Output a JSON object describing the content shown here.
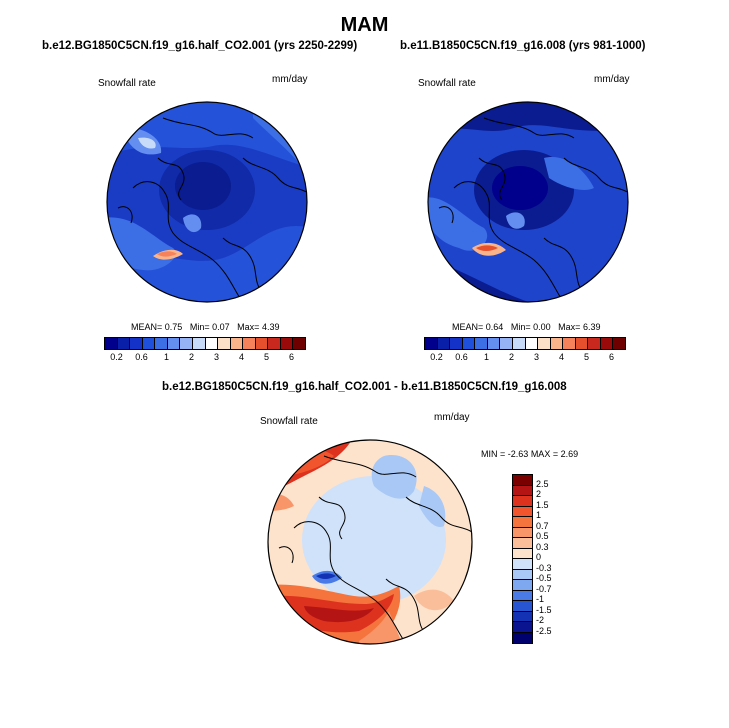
{
  "title": "MAM",
  "panel_left": {
    "title": "b.e12.BG1850C5CN.f19_g16.half_CO2.001 (yrs 2250-2299)",
    "variable": "Snowfall rate",
    "units": "mm/day",
    "stats": {
      "mean_label": "MEAN=",
      "mean": "0.75",
      "min_label": "Min=",
      "min": "0.07",
      "max_label": "Max=",
      "max": "4.39"
    }
  },
  "panel_right": {
    "title": "b.e11.B1850C5CN.f19_g16.008 (yrs 981-1000)",
    "variable": "Snowfall rate",
    "units": "mm/day",
    "stats": {
      "mean_label": "MEAN=",
      "mean": "0.64",
      "min_label": "Min=",
      "min": "0.00",
      "max_label": "Max=",
      "max": "6.39"
    }
  },
  "panel_diff": {
    "title": "b.e12.BG1850C5CN.f19_g16.half_CO2.001 - b.e11.B1850C5CN.f19_g16.008",
    "variable": "Snowfall rate",
    "units": "mm/day",
    "minmax": {
      "min_label": "MIN =",
      "min": "-2.63",
      "max_label": "MAX =",
      "max": "2.69"
    }
  },
  "colorbar_abs": {
    "labels": [
      "0.2",
      "0.6",
      "1",
      "2",
      "3",
      "4",
      "5",
      "6"
    ],
    "colors": [
      "#00008c",
      "#0a1fa8",
      "#1432c8",
      "#1e50dc",
      "#3c6ee6",
      "#648ef0",
      "#96b4f5",
      "#c8dcfa",
      "#ffffff",
      "#fde0c8",
      "#fab48c",
      "#f5825a",
      "#e6502d",
      "#c8281e",
      "#9b0a0a",
      "#6e0000"
    ]
  },
  "colorbar_diff": {
    "labels": [
      "2.5",
      "2",
      "1.5",
      "1",
      "0.7",
      "0.5",
      "0.3",
      "0",
      "-0.3",
      "-0.5",
      "-0.7",
      "-1",
      "-1.5",
      "-2",
      "-2.5"
    ],
    "colors": [
      "#7a0000",
      "#b41414",
      "#dc321e",
      "#f0552d",
      "#f5733c",
      "#f8966a",
      "#fbbe9b",
      "#fde3cc",
      "#cfe2fa",
      "#a9c8f5",
      "#7ea9f0",
      "#4a7ae6",
      "#2855d2",
      "#1432b4",
      "#0a1490",
      "#00006e"
    ]
  }
}
